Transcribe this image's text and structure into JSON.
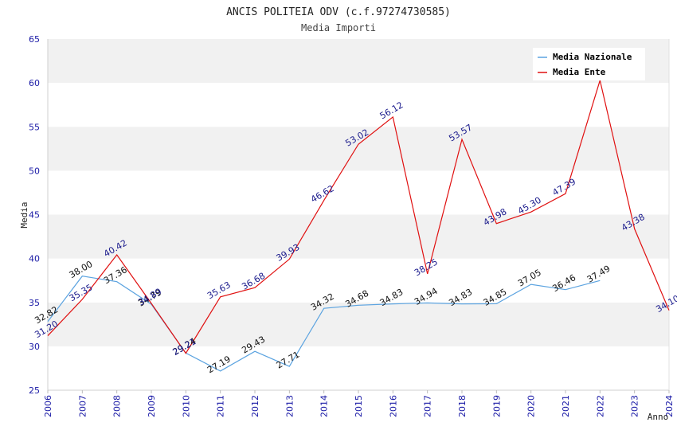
{
  "header": {
    "title": "ANCIS POLITEIA ODV (c.f.97274730585)",
    "subtitle": "Media Importi"
  },
  "chart_data": {
    "type": "line",
    "title": "ANCIS POLITEIA ODV (c.f.97274730585)",
    "subtitle": "Media Importi",
    "xlabel": "Anno",
    "ylabel": "Media",
    "x": [
      "2006",
      "2007",
      "2008",
      "2009",
      "2010",
      "2011",
      "2012",
      "2013",
      "2014",
      "2015",
      "2016",
      "2017",
      "2018",
      "2019",
      "2020",
      "2021",
      "2022",
      "2023",
      "2024"
    ],
    "ylim": [
      25,
      65
    ],
    "yticks": [
      25,
      30,
      35,
      40,
      45,
      50,
      55,
      60,
      65
    ],
    "grid": "horizontal alternating bands",
    "legend_position": "top-right",
    "series": [
      {
        "name": "Media Nazionale",
        "color": "#5ba3e0",
        "label_color": "#111111",
        "values": [
          32.82,
          38.0,
          37.36,
          34.79,
          29.24,
          27.19,
          29.43,
          27.71,
          34.32,
          34.68,
          34.83,
          34.94,
          34.83,
          34.85,
          37.05,
          36.46,
          37.49,
          null,
          null
        ],
        "labels": [
          "32.82",
          "38.00",
          "37.36",
          "34.79",
          "29.24",
          "27.19",
          "29.43",
          "27.71",
          "34.32",
          "34.68",
          "34.83",
          "34.94",
          "34.83",
          "34.85",
          "37.05",
          "36.46",
          "37.49",
          null,
          null
        ]
      },
      {
        "name": "Media Ente",
        "color": "#e01010",
        "label_color": "#1a1a8c",
        "values": [
          31.2,
          35.35,
          40.42,
          34.89,
          29.21,
          35.63,
          36.68,
          39.93,
          46.62,
          53.02,
          56.12,
          38.25,
          53.57,
          43.98,
          45.3,
          47.39,
          60.29,
          43.38,
          34.1
        ],
        "labels": [
          "31.20",
          "35.35",
          "40.42",
          "34.89",
          "29.21",
          "35.63",
          "36.68",
          "39.93",
          "46.62",
          "53.02",
          "56.12",
          "38.25",
          "53.57",
          "43.98",
          "45.30",
          "47.39",
          null,
          "43.38",
          "34.10"
        ]
      }
    ]
  }
}
